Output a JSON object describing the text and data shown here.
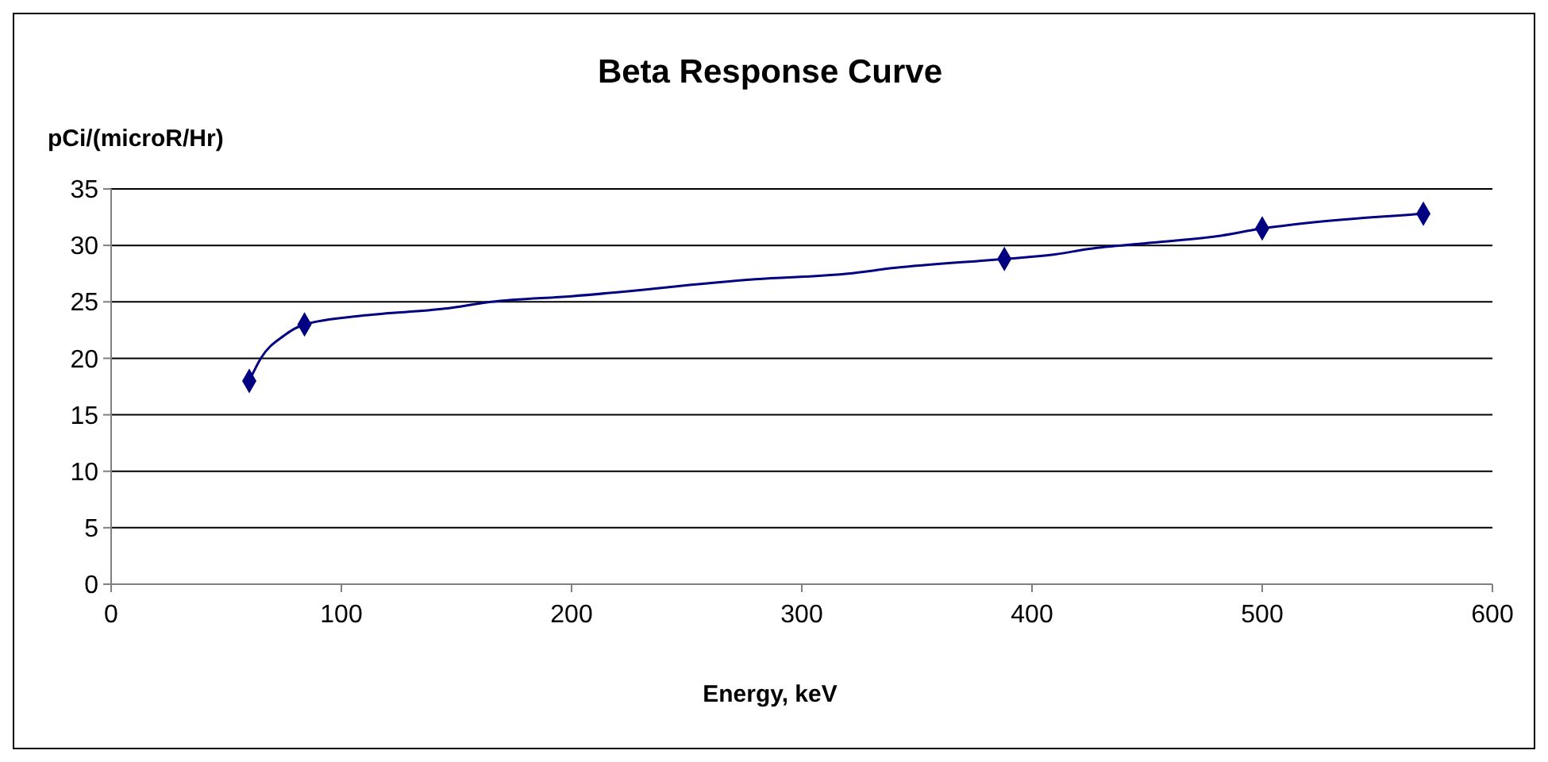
{
  "chart_data": {
    "type": "line",
    "title": "Beta Response Curve",
    "ylabel": "pCi/(microR/Hr)",
    "xlabel": "Energy, keV",
    "xlim": [
      0,
      600
    ],
    "xticks": [
      0,
      100,
      200,
      300,
      400,
      500,
      600
    ],
    "ylim": [
      0,
      35
    ],
    "yticks": [
      0,
      5,
      10,
      15,
      20,
      25,
      30,
      35
    ],
    "grid": "y",
    "series": [
      {
        "color": "#000080",
        "marker": "none",
        "x": [
          60,
          65,
          75,
          84,
          110,
          145,
          165,
          200,
          280,
          320,
          340,
          388,
          410,
          425,
          450,
          480,
          500,
          520,
          570
        ],
        "values": [
          18,
          20,
          22,
          23,
          23.8,
          24.4,
          25,
          25.5,
          27,
          27.5,
          28,
          28.8,
          29.2,
          29.7,
          30.2,
          30.8,
          31.5,
          32,
          32.8
        ]
      },
      {
        "type": "scatter",
        "color": "#000080",
        "marker": "diamond",
        "x": [
          60,
          84,
          388,
          500,
          570
        ],
        "values": [
          18,
          23,
          28.8,
          31.5,
          32.8
        ]
      }
    ]
  }
}
